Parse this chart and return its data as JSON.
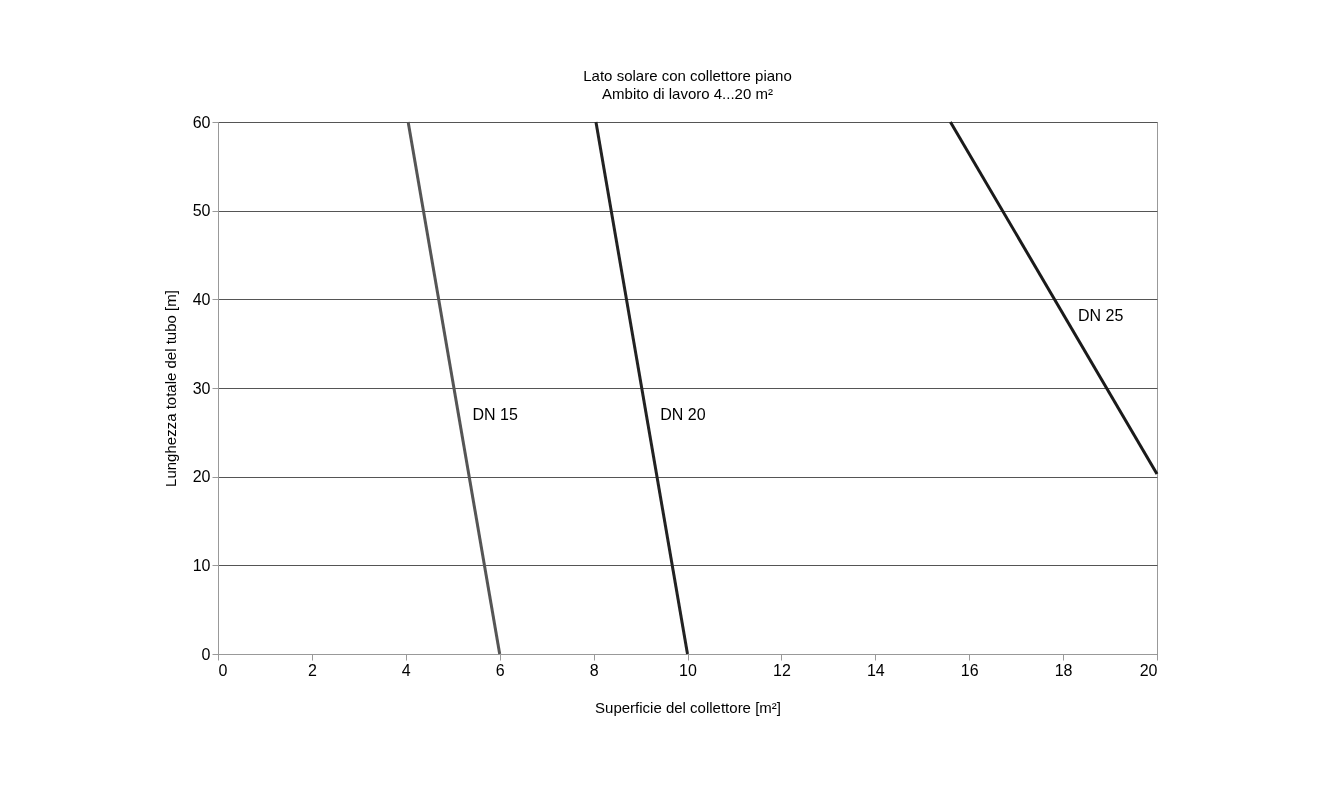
{
  "chart_data": {
    "type": "line",
    "title": "Lato solare con collettore piano",
    "subtitle": "Ambito di lavoro  4...20 m²",
    "xlabel": "Superficie del collettore [m²]",
    "ylabel": "Lunghezza totale del tubo [m]",
    "xlim": [
      0,
      20
    ],
    "xticks": [
      0,
      2,
      4,
      6,
      8,
      10,
      12,
      14,
      16,
      18,
      20
    ],
    "ylim": [
      0,
      60
    ],
    "yticks": [
      0,
      10,
      20,
      30,
      40,
      50,
      60
    ],
    "grid": "y",
    "legend": false,
    "marker": "none",
    "line_style": "solid",
    "series": [
      {
        "name": "DN 15",
        "color": "#555555",
        "x": [
          4.05,
          6
        ],
        "values": [
          60,
          0
        ]
      },
      {
        "name": "DN 20",
        "color": "#222222",
        "x": [
          8.05,
          10
        ],
        "values": [
          60,
          0
        ]
      },
      {
        "name": "DN 25",
        "color": "#1a1a1a",
        "x": [
          15.6,
          20
        ],
        "values": [
          60,
          20.3
        ]
      }
    ]
  }
}
